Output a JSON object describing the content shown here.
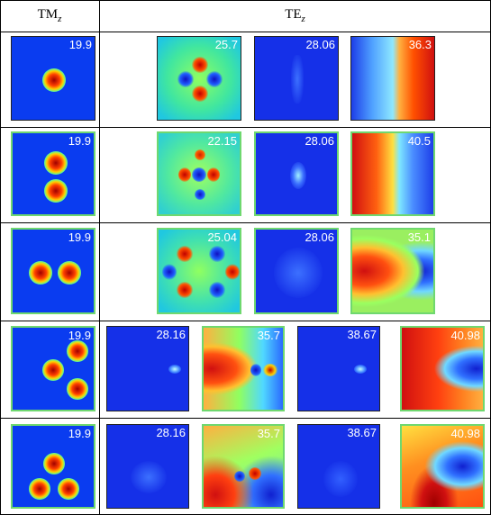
{
  "headers": {
    "tm": "TM",
    "tm_sub": "z",
    "te": "TE",
    "te_sub": "z"
  },
  "colors": {
    "field_blue": "#0a3cf0",
    "panel_border": "#6fd86f",
    "hot": "#d01010",
    "cold": "#1a2ad8"
  },
  "rows": [
    {
      "tm_value": "19.9",
      "te_values": [
        "25.7",
        "28.06",
        "36.3"
      ]
    },
    {
      "tm_value": "19.9",
      "te_values": [
        "22.15",
        "28.06",
        "40.5"
      ]
    },
    {
      "tm_value": "19.9",
      "te_values": [
        "25.04",
        "28.06",
        "35.1"
      ]
    },
    {
      "tm_value": "19.9",
      "te_values": [
        "28.16",
        "35.7",
        "38.67",
        "40.98"
      ]
    },
    {
      "tm_value": "19.9",
      "te_values": [
        "28.16",
        "35.7",
        "38.67",
        "40.98"
      ]
    }
  ]
}
